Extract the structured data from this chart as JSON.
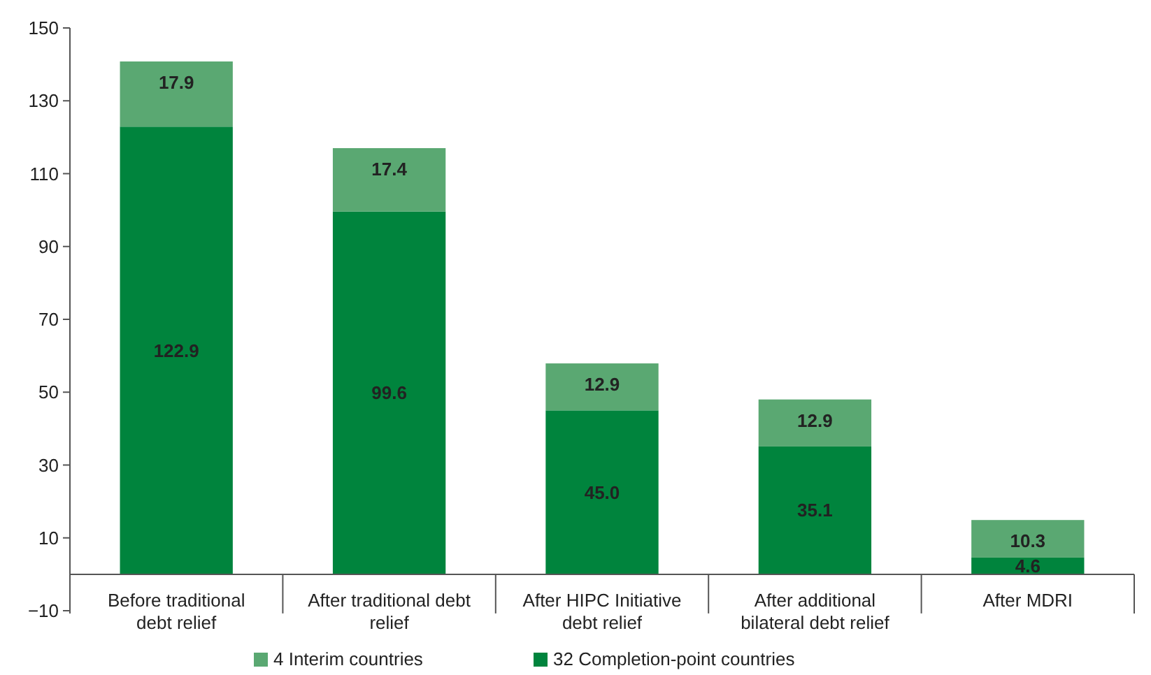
{
  "chart_data": {
    "type": "bar",
    "stacked": true,
    "categories": [
      "Before traditional debt relief",
      "After traditional debt relief",
      "After HIPC Initiative debt relief",
      "After additional bilateral debt relief",
      "After MDRI"
    ],
    "series": [
      {
        "name": "32 Completion-point countries",
        "color": "#00843d",
        "values": [
          122.9,
          99.6,
          45.0,
          35.1,
          4.6
        ],
        "value_labels": [
          "122.9",
          "99.6",
          "45.0",
          "35.1",
          "4.6"
        ]
      },
      {
        "name": "4 Interim countries",
        "color": "#5aa872",
        "values": [
          17.9,
          17.4,
          12.9,
          12.9,
          10.3
        ],
        "value_labels": [
          "17.9",
          "17.4",
          "12.9",
          "12.9",
          "10.3"
        ]
      }
    ],
    "ylim": [
      -10,
      150
    ],
    "yticks": [
      -10,
      10,
      30,
      50,
      70,
      90,
      110,
      130,
      150
    ],
    "grid": false,
    "legend": "bottom"
  }
}
